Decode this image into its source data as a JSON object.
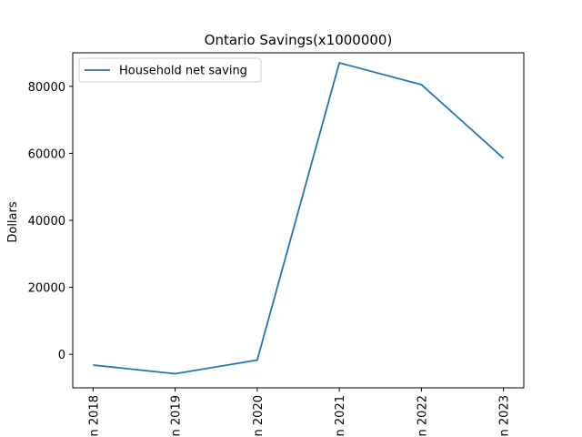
{
  "chart_data": {
    "type": "line",
    "title": "Ontario Savings(x1000000)",
    "xlabel": "",
    "ylabel": "Dollars",
    "categories": [
      "2018",
      "2019",
      "2020",
      "2021",
      "2022",
      "2023"
    ],
    "x_tick_labels": [
      "n 2018",
      "n 2019",
      "n 2020",
      "n 2021",
      "n 2022",
      "n 2023"
    ],
    "series": [
      {
        "name": "Household net saving",
        "color": "#1f77b4",
        "values": [
          -3200,
          -5800,
          -1700,
          87000,
          80500,
          58500
        ]
      }
    ],
    "ylim": [
      -10000,
      90000
    ],
    "yticks": [
      0,
      20000,
      40000,
      60000,
      80000
    ],
    "ytick_labels": [
      "0",
      "20000",
      "40000",
      "60000",
      "80000"
    ],
    "grid": false,
    "legend_position": "top-left"
  }
}
